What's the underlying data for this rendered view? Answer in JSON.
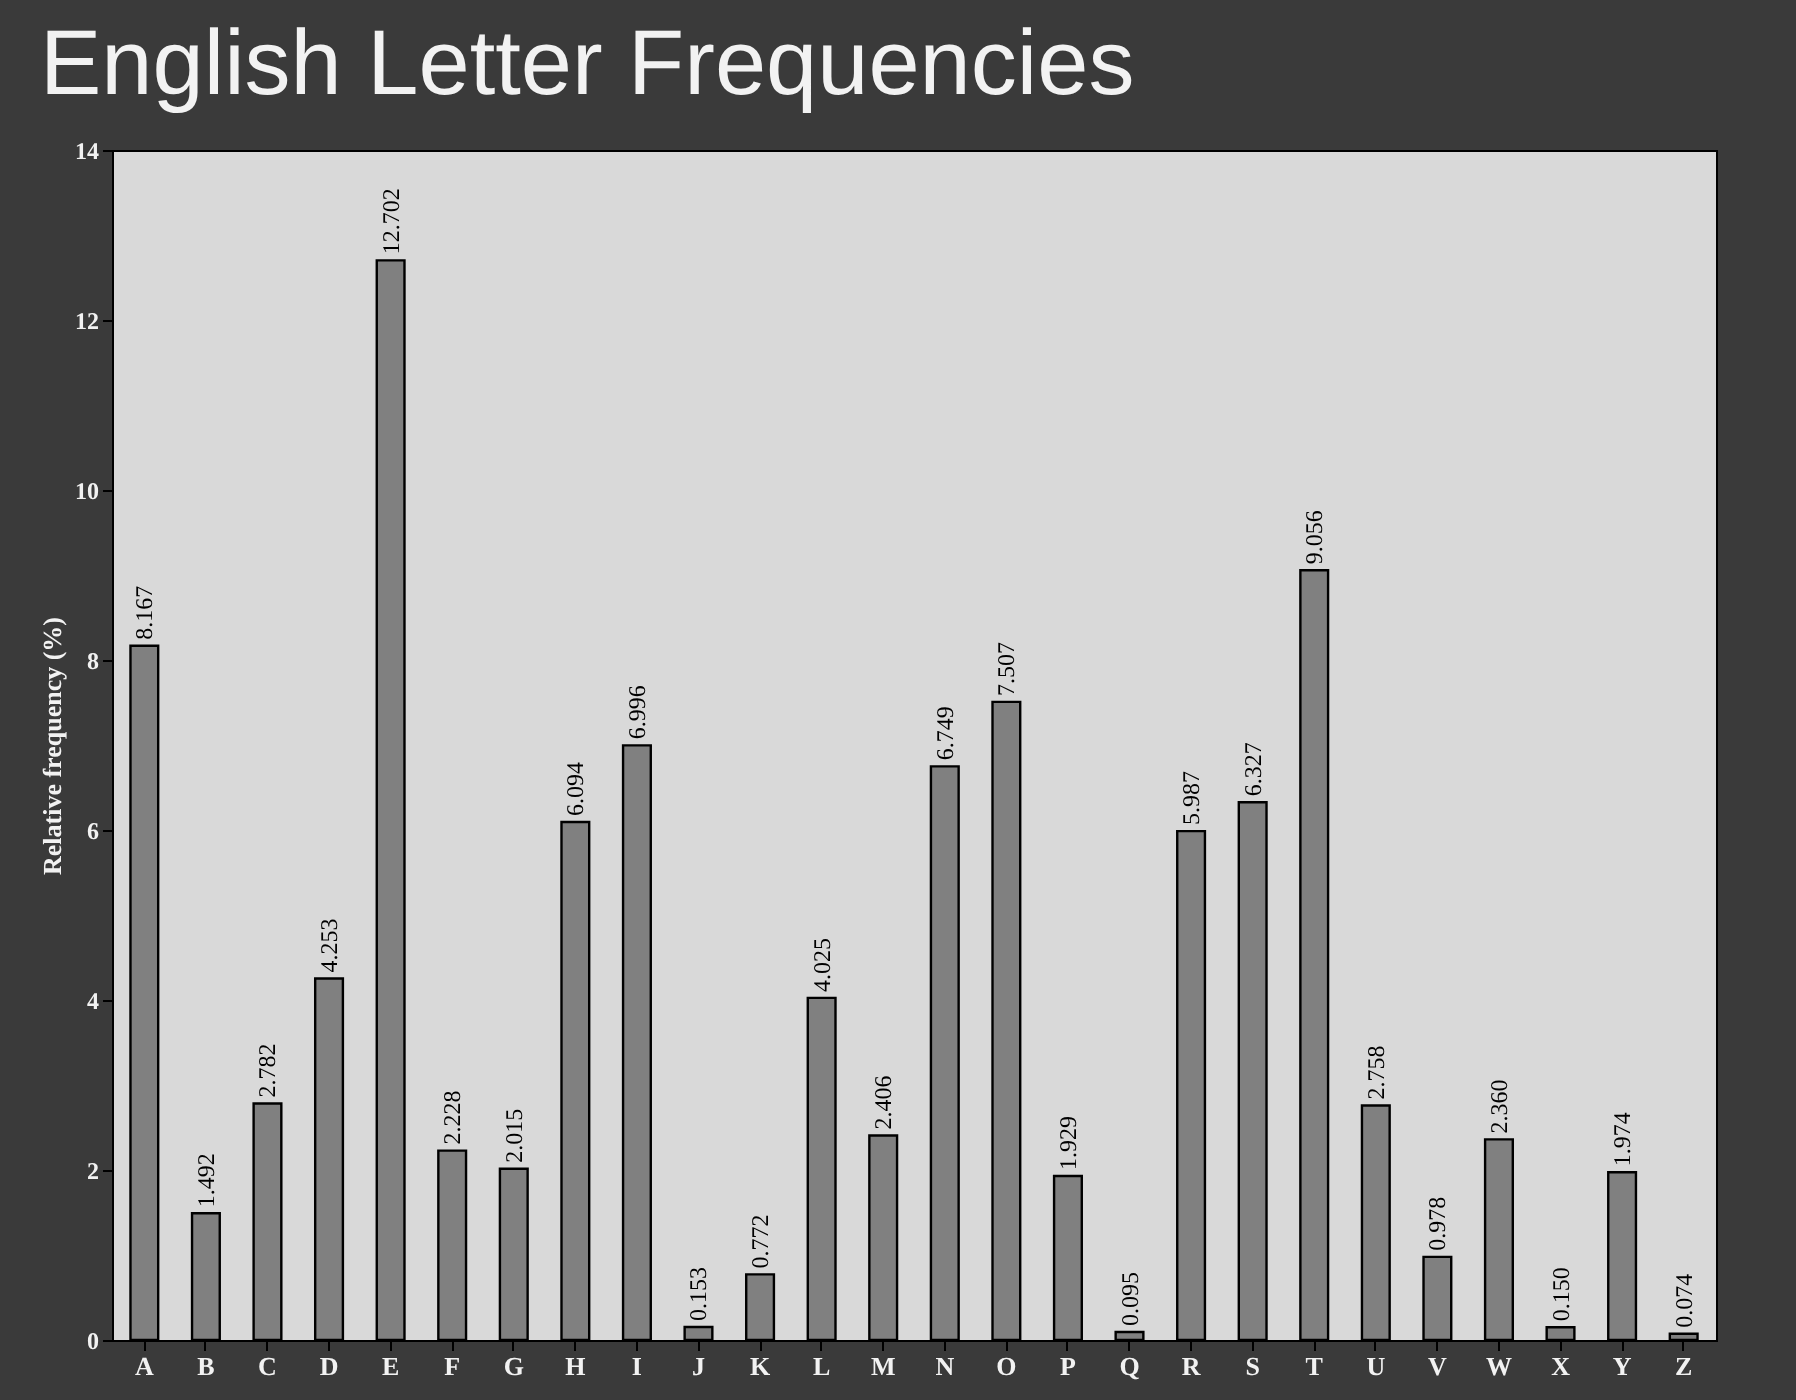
{
  "chart_data": {
    "type": "bar",
    "title": "English Letter Frequencies",
    "ylabel": "Relative frequency (%)",
    "categories": [
      "A",
      "B",
      "C",
      "D",
      "E",
      "F",
      "G",
      "H",
      "I",
      "J",
      "K",
      "L",
      "M",
      "N",
      "O",
      "P",
      "Q",
      "R",
      "S",
      "T",
      "U",
      "V",
      "W",
      "X",
      "Y",
      "Z"
    ],
    "values": [
      8.167,
      1.492,
      2.782,
      4.253,
      12.702,
      2.228,
      2.015,
      6.094,
      6.996,
      0.153,
      0.772,
      4.025,
      2.406,
      6.749,
      7.507,
      1.929,
      0.095,
      5.987,
      6.327,
      9.056,
      2.758,
      0.978,
      2.36,
      0.15,
      1.974,
      0.074
    ],
    "value_labels": [
      "8.167",
      "1.492",
      "2.782",
      "4.253",
      "12.702",
      "2.228",
      "2.015",
      "6.094",
      "6.996",
      "0.153",
      "0.772",
      "4.025",
      "2.406",
      "6.749",
      "7.507",
      "1.929",
      "0.095",
      "5.987",
      "6.327",
      "9.056",
      "2.758",
      "0.978",
      "2.360",
      "0.150",
      "1.974",
      "0.074"
    ],
    "color": "#808080",
    "ylim": [
      0,
      14
    ],
    "yticks": [
      0,
      2,
      4,
      6,
      8,
      10,
      12,
      14
    ],
    "grid": false
  }
}
